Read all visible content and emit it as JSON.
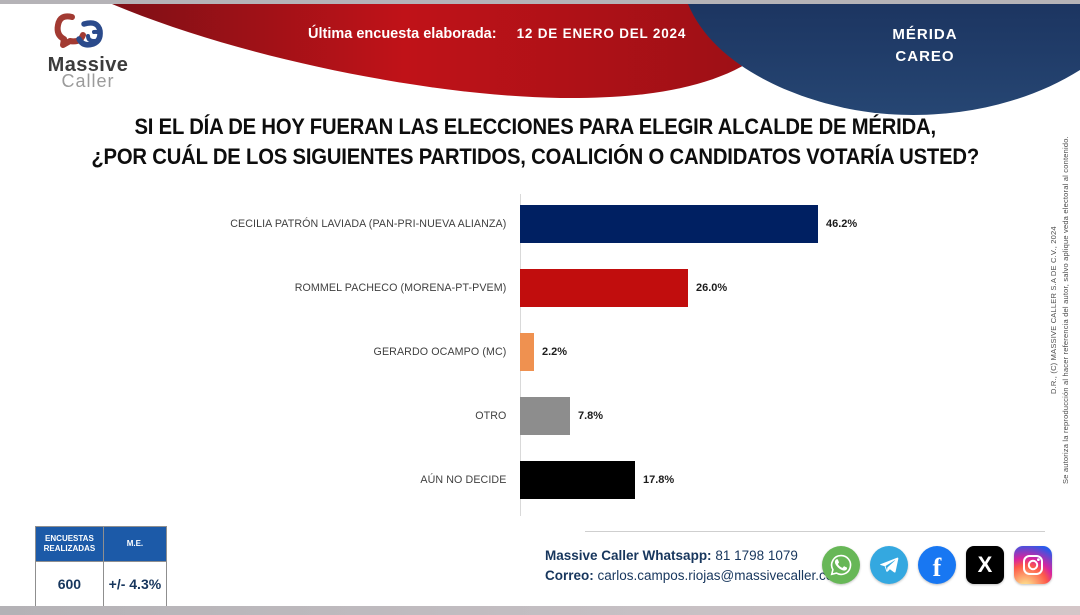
{
  "header": {
    "logo": {
      "line1": "Massive",
      "line2": "Caller"
    },
    "banner": {
      "label": "Última encuesta elaborada:",
      "date": "12 DE ENERO DEL 2024"
    },
    "region": {
      "line1": "MÉRIDA",
      "line2": "CAREO"
    }
  },
  "title": {
    "line1": "SI EL DÍA DE HOY FUERAN LAS ELECCIONES PARA ELEGIR ALCALDE DE MÉRIDA,",
    "line2": "¿POR CUÁL DE LOS SIGUIENTES PARTIDOS, COALICIÓN O CANDIDATOS VOTARÍA USTED?"
  },
  "chart_data": {
    "type": "bar",
    "orientation": "horizontal",
    "categories": [
      "CECILIA PATRÓN LAVIADA (PAN-PRI-NUEVA ALIANZA)",
      "ROMMEL PACHECO (MORENA-PT-PVEM)",
      "GERARDO OCAMPO (MC)",
      "OTRO",
      "AÚN NO DECIDE"
    ],
    "values": [
      46.2,
      26.0,
      2.2,
      7.8,
      17.8
    ],
    "value_labels": [
      "46.2%",
      "26.0%",
      "2.2%",
      "7.8%",
      "17.8%"
    ],
    "colors": [
      "#002062",
      "#c10d0d",
      "#ef9150",
      "#8d8d8d",
      "#000000"
    ],
    "xlim": [
      0,
      50
    ],
    "grid": false,
    "legend": false
  },
  "stats_table": {
    "headers": [
      "ENCUESTAS REALIZADAS",
      "M.E."
    ],
    "values": [
      "600",
      "+/- 4.3%"
    ]
  },
  "contact": {
    "whatsapp_label": "Massive Caller Whatsapp:",
    "whatsapp_number": " 81 1798 1079",
    "email_label": "Correo:",
    "email": " carlos.campos.riojas@massivecaller.com"
  },
  "social_icons": [
    "whatsapp-icon",
    "telegram-icon",
    "facebook-icon",
    "x-icon",
    "instagram-icon"
  ],
  "copyright": {
    "line1": "D.R., (C) MASSIVE CALLER S.A DE C.V., 2024",
    "line2": "Se autoriza la reproducción al hacer referencia del autor, salvo aplique veda electoral al contenido."
  },
  "colors": {
    "banner_red": "#c01218",
    "header_navy": "#223d6d",
    "table_header_blue": "#1c5aa8",
    "contact_text": "#17365d"
  }
}
